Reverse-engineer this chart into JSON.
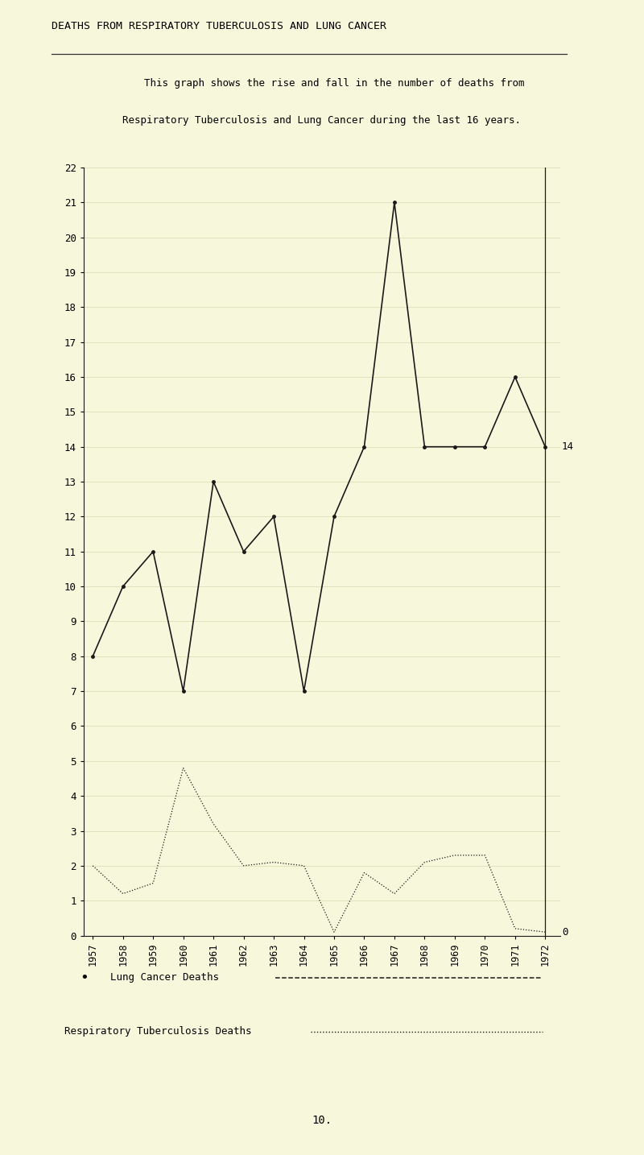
{
  "title": "DEATHS FROM RESPIRATORY TUBERCULOSIS AND LUNG CANCER",
  "subtitle_line1": "    This graph shows the rise and fall in the number of deaths from",
  "subtitle_line2": "Respiratory Tuberculosis and Lung Cancer during the last 16 years.",
  "years": [
    "1957",
    "1958",
    "1959",
    "1960",
    "1961",
    "1962",
    "1963",
    "1964",
    "1965",
    "1966",
    "1967",
    "1968",
    "1969",
    "1970",
    "1971",
    "1972"
  ],
  "lung_cancer": [
    8,
    10,
    11,
    7,
    13,
    11,
    12,
    7,
    12,
    14,
    21,
    14,
    14,
    14,
    16,
    14
  ],
  "resp_tb": [
    2.0,
    1.2,
    1.5,
    4.8,
    3.2,
    2.0,
    2.1,
    2.0,
    0.1,
    1.8,
    1.2,
    2.1,
    2.3,
    2.3,
    0.2,
    0.1
  ],
  "ylim_max": 22,
  "ylim_min": 0,
  "yticks": [
    0,
    1,
    2,
    3,
    4,
    5,
    6,
    7,
    8,
    9,
    10,
    11,
    12,
    13,
    14,
    15,
    16,
    17,
    18,
    19,
    20,
    21,
    22
  ],
  "bg_color": "#f7f7dc",
  "line_color": "#1a1a1a",
  "grid_color": "#d8d8b0",
  "legend_lung": "Lung Cancer Deaths",
  "legend_tb": "Respiratory Tuberculosis Deaths",
  "footer_number": "10.",
  "annotation_14": "14"
}
